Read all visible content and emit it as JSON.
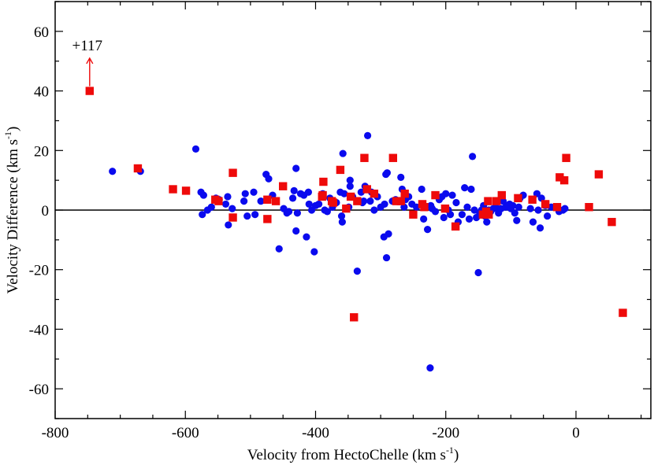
{
  "chart_data": {
    "type": "scatter",
    "title": "",
    "xlabel": {
      "main": "Velocity from HectoChelle (km s",
      "sup": "-1",
      "close": ")"
    },
    "ylabel": {
      "main": "Velocity Difference (km s",
      "sup": "-1",
      "close": ")"
    },
    "xlim": [
      -800,
      115
    ],
    "ylim": [
      -70,
      70
    ],
    "xticks": [
      -800,
      -600,
      -400,
      -200,
      0
    ],
    "xtick_labels": [
      "-800",
      "-600",
      "-400",
      "-200",
      "0"
    ],
    "yticks": [
      -60,
      -40,
      -20,
      0,
      20,
      40,
      60
    ],
    "ytick_labels": [
      "-60",
      "-40",
      "-20",
      "0",
      "20",
      "40",
      "60"
    ],
    "zero_line": 0,
    "colors": {
      "circle": "#0a0aee",
      "square": "#ee0a0a",
      "axis": "#000000"
    },
    "annotation": {
      "text": "+117",
      "x": -747,
      "y": 40,
      "arrow_to": 51
    },
    "series": [
      {
        "name": "circles",
        "marker": "circle",
        "points": [
          [
            -712,
            13
          ],
          [
            -669,
            13
          ],
          [
            -584,
            20.5
          ],
          [
            -576,
            6
          ],
          [
            -572,
            5
          ],
          [
            -574,
            -1.5
          ],
          [
            -566,
            0
          ],
          [
            -560,
            1
          ],
          [
            -553,
            4
          ],
          [
            -548,
            3.5
          ],
          [
            -538,
            2
          ],
          [
            -535,
            4.5
          ],
          [
            -534,
            -5
          ],
          [
            -528,
            0.5
          ],
          [
            -510,
            3
          ],
          [
            -508,
            5.5
          ],
          [
            -505,
            -2
          ],
          [
            -495,
            6
          ],
          [
            -493,
            -1.5
          ],
          [
            -484,
            3
          ],
          [
            -476,
            12
          ],
          [
            -472,
            10.5
          ],
          [
            -466,
            5
          ],
          [
            -456,
            -13
          ],
          [
            -449,
            0.5
          ],
          [
            -444,
            -1
          ],
          [
            -441,
            -0.5
          ],
          [
            -435,
            4
          ],
          [
            -433,
            6.5
          ],
          [
            -430,
            -7
          ],
          [
            -430,
            14
          ],
          [
            -428,
            -1
          ],
          [
            -423,
            5.5
          ],
          [
            -418,
            5
          ],
          [
            -414,
            -9
          ],
          [
            -411,
            6
          ],
          [
            -410,
            2
          ],
          [
            -406,
            0
          ],
          [
            -402,
            -14
          ],
          [
            -400,
            1.5
          ],
          [
            -395,
            2
          ],
          [
            -389,
            5.5
          ],
          [
            -386,
            0
          ],
          [
            -382,
            -0.5
          ],
          [
            -378,
            4
          ],
          [
            -374,
            1
          ],
          [
            -368,
            2.5
          ],
          [
            -362,
            6
          ],
          [
            -360,
            -2
          ],
          [
            -359,
            -4
          ],
          [
            -358,
            19
          ],
          [
            -356,
            5.5
          ],
          [
            -351,
            0.5
          ],
          [
            -349,
            1
          ],
          [
            -347,
            10
          ],
          [
            -347,
            8
          ],
          [
            -343,
            4.5
          ],
          [
            -336,
            -20.5
          ],
          [
            -330,
            6
          ],
          [
            -328,
            2.5
          ],
          [
            -326,
            3
          ],
          [
            -324,
            8
          ],
          [
            -320,
            25
          ],
          [
            -316,
            3
          ],
          [
            -314,
            6
          ],
          [
            -310,
            0
          ],
          [
            -305,
            4.5
          ],
          [
            -300,
            1
          ],
          [
            -295,
            -9
          ],
          [
            -294,
            2
          ],
          [
            -292,
            12
          ],
          [
            -291,
            -16
          ],
          [
            -290,
            12.5
          ],
          [
            -288,
            -8
          ],
          [
            -282,
            3
          ],
          [
            -277,
            3.5
          ],
          [
            -269,
            11
          ],
          [
            -267,
            7
          ],
          [
            -264,
            1
          ],
          [
            -262,
            3.5
          ],
          [
            -257,
            4.5
          ],
          [
            -252,
            2
          ],
          [
            -245,
            1
          ],
          [
            -237,
            7
          ],
          [
            -234,
            -3
          ],
          [
            -231,
            1
          ],
          [
            -228,
            -6.5
          ],
          [
            -224,
            -53
          ],
          [
            -223,
            1.5
          ],
          [
            -221,
            0.5
          ],
          [
            -216,
            -0.5
          ],
          [
            -210,
            3.5
          ],
          [
            -206,
            4.5
          ],
          [
            -203,
            -2.5
          ],
          [
            -200,
            5.5
          ],
          [
            -196,
            0
          ],
          [
            -193,
            -1.5
          ],
          [
            -190,
            5
          ],
          [
            -184,
            2.5
          ],
          [
            -181,
            -4
          ],
          [
            -175,
            -1.5
          ],
          [
            -171,
            7.5
          ],
          [
            -167,
            1
          ],
          [
            -164,
            -3
          ],
          [
            -161,
            7
          ],
          [
            -159,
            18
          ],
          [
            -156,
            0
          ],
          [
            -153,
            -2.5
          ],
          [
            -150,
            -21
          ],
          [
            -148,
            -1
          ],
          [
            -145,
            0
          ],
          [
            -142,
            1.5
          ],
          [
            -140,
            -2
          ],
          [
            -137,
            -4
          ],
          [
            -134,
            0
          ],
          [
            -131,
            -0.5
          ],
          [
            -127,
            0.5
          ],
          [
            -123,
            1
          ],
          [
            -119,
            -1
          ],
          [
            -115,
            0.5
          ],
          [
            -112,
            3
          ],
          [
            -108,
            1
          ],
          [
            -105,
            1.5
          ],
          [
            -102,
            2
          ],
          [
            -100,
            0.5
          ],
          [
            -97,
            1.5
          ],
          [
            -94,
            -1
          ],
          [
            -91,
            -3.5
          ],
          [
            -88,
            1
          ],
          [
            -86,
            4
          ],
          [
            -81,
            5
          ],
          [
            -70,
            0.5
          ],
          [
            -66,
            -4
          ],
          [
            -60,
            5.5
          ],
          [
            -58,
            0
          ],
          [
            -55,
            -6
          ],
          [
            -53,
            4
          ],
          [
            -47,
            1.5
          ],
          [
            -44,
            -2
          ],
          [
            -38,
            1
          ],
          [
            -26,
            -0.5
          ],
          [
            -20,
            0
          ],
          [
            -17,
            0.5
          ]
        ]
      },
      {
        "name": "squares",
        "marker": "square",
        "points": [
          [
            -747,
            40
          ],
          [
            -673,
            14
          ],
          [
            -619,
            7
          ],
          [
            -599,
            6.5
          ],
          [
            -554,
            3.5
          ],
          [
            -549,
            3
          ],
          [
            -527,
            12.5
          ],
          [
            -527,
            -2.5
          ],
          [
            -474,
            3.5
          ],
          [
            -474,
            -3
          ],
          [
            -461,
            3
          ],
          [
            -450,
            8
          ],
          [
            -390,
            4.5
          ],
          [
            -389,
            5
          ],
          [
            -388,
            9.5
          ],
          [
            -375,
            3
          ],
          [
            -373,
            2.5
          ],
          [
            -362,
            13.5
          ],
          [
            -353,
            0.5
          ],
          [
            -346,
            4.5
          ],
          [
            -341,
            -36
          ],
          [
            -336,
            3
          ],
          [
            -325,
            17.5
          ],
          [
            -321,
            7
          ],
          [
            -310,
            5.5
          ],
          [
            -281,
            17.5
          ],
          [
            -276,
            3
          ],
          [
            -269,
            3
          ],
          [
            -263,
            5.5
          ],
          [
            -250,
            -1.5
          ],
          [
            -236,
            2
          ],
          [
            -233,
            1
          ],
          [
            -216,
            5
          ],
          [
            -201,
            0.5
          ],
          [
            -185,
            -5.5
          ],
          [
            -143,
            -1.5
          ],
          [
            -138,
            -0.5
          ],
          [
            -135,
            3
          ],
          [
            -134,
            -1.5
          ],
          [
            -122,
            3
          ],
          [
            -114,
            5
          ],
          [
            -89,
            4
          ],
          [
            -67,
            3.5
          ],
          [
            -47,
            2
          ],
          [
            -29,
            1
          ],
          [
            -25,
            11
          ],
          [
            -18,
            10
          ],
          [
            -15,
            17.5
          ],
          [
            20,
            1
          ],
          [
            35,
            12
          ],
          [
            55,
            -4
          ],
          [
            72,
            -34.5
          ]
        ]
      }
    ]
  }
}
